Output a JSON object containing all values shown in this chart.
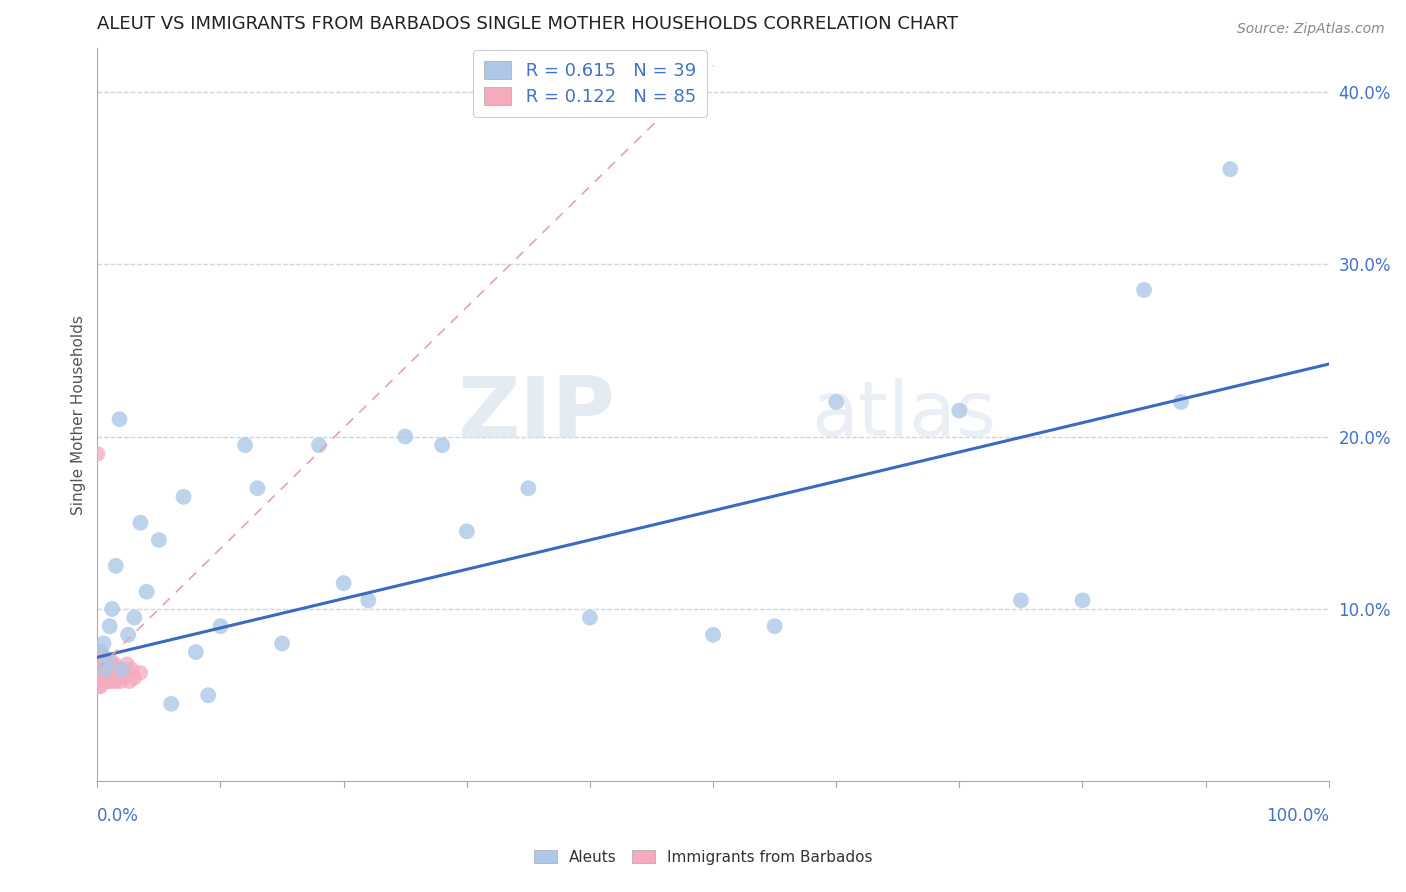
{
  "title": "ALEUT VS IMMIGRANTS FROM BARBADOS SINGLE MOTHER HOUSEHOLDS CORRELATION CHART",
  "source": "Source: ZipAtlas.com",
  "ylabel": "Single Mother Households",
  "r_aleut": 0.615,
  "n_aleut": 39,
  "r_barbados": 0.122,
  "n_barbados": 85,
  "aleut_color": "#adc8e8",
  "barbados_color": "#f5aabe",
  "trendline_color": "#3a6bbf",
  "dashed_line_color": "#e8a0b0",
  "watermark_zip": "ZIP",
  "watermark_atlas": "atlas",
  "aleut_x": [
    0.003,
    0.005,
    0.006,
    0.008,
    0.01,
    0.012,
    0.015,
    0.018,
    0.02,
    0.025,
    0.03,
    0.035,
    0.04,
    0.05,
    0.06,
    0.07,
    0.08,
    0.09,
    0.1,
    0.12,
    0.13,
    0.15,
    0.18,
    0.2,
    0.22,
    0.25,
    0.28,
    0.3,
    0.35,
    0.4,
    0.5,
    0.55,
    0.6,
    0.7,
    0.75,
    0.8,
    0.85,
    0.88,
    0.92
  ],
  "aleut_y": [
    0.075,
    0.08,
    0.065,
    0.07,
    0.09,
    0.1,
    0.125,
    0.21,
    0.065,
    0.085,
    0.095,
    0.15,
    0.11,
    0.14,
    0.045,
    0.165,
    0.075,
    0.05,
    0.09,
    0.195,
    0.17,
    0.08,
    0.195,
    0.115,
    0.105,
    0.2,
    0.195,
    0.145,
    0.17,
    0.095,
    0.085,
    0.09,
    0.22,
    0.215,
    0.105,
    0.105,
    0.285,
    0.22,
    0.355
  ],
  "barbados_x": [
    0.0003,
    0.0005,
    0.0006,
    0.0007,
    0.0008,
    0.001,
    0.001,
    0.001,
    0.0012,
    0.0013,
    0.0014,
    0.0015,
    0.0015,
    0.002,
    0.002,
    0.002,
    0.002,
    0.002,
    0.0022,
    0.0023,
    0.0025,
    0.0026,
    0.0027,
    0.003,
    0.003,
    0.003,
    0.003,
    0.003,
    0.003,
    0.0032,
    0.0033,
    0.0034,
    0.0035,
    0.0035,
    0.004,
    0.004,
    0.004,
    0.004,
    0.004,
    0.0042,
    0.0043,
    0.0044,
    0.0045,
    0.005,
    0.005,
    0.005,
    0.005,
    0.005,
    0.005,
    0.006,
    0.006,
    0.006,
    0.006,
    0.007,
    0.007,
    0.007,
    0.007,
    0.008,
    0.008,
    0.008,
    0.009,
    0.009,
    0.01,
    0.01,
    0.01,
    0.011,
    0.011,
    0.012,
    0.012,
    0.013,
    0.014,
    0.014,
    0.015,
    0.015,
    0.016,
    0.017,
    0.018,
    0.019,
    0.02,
    0.022,
    0.024,
    0.026,
    0.028,
    0.03,
    0.035
  ],
  "barbados_y": [
    0.19,
    0.075,
    0.065,
    0.06,
    0.07,
    0.065,
    0.072,
    0.058,
    0.063,
    0.068,
    0.055,
    0.062,
    0.07,
    0.06,
    0.065,
    0.058,
    0.072,
    0.068,
    0.062,
    0.055,
    0.068,
    0.06,
    0.072,
    0.058,
    0.063,
    0.065,
    0.07,
    0.06,
    0.072,
    0.058,
    0.065,
    0.068,
    0.06,
    0.072,
    0.058,
    0.063,
    0.065,
    0.07,
    0.06,
    0.072,
    0.058,
    0.065,
    0.068,
    0.06,
    0.063,
    0.065,
    0.058,
    0.072,
    0.068,
    0.06,
    0.065,
    0.058,
    0.072,
    0.06,
    0.063,
    0.065,
    0.07,
    0.06,
    0.065,
    0.058,
    0.063,
    0.068,
    0.06,
    0.065,
    0.058,
    0.063,
    0.07,
    0.058,
    0.065,
    0.06,
    0.063,
    0.068,
    0.058,
    0.065,
    0.06,
    0.063,
    0.065,
    0.058,
    0.06,
    0.063,
    0.068,
    0.058,
    0.065,
    0.06,
    0.063
  ],
  "ytick_vals": [
    0.1,
    0.2,
    0.3,
    0.4
  ],
  "ytick_labels": [
    "10.0%",
    "20.0%",
    "30.0%",
    "40.0%"
  ],
  "ymin": 0.0,
  "ymax": 0.425,
  "xmin": 0.0,
  "xmax": 1.0,
  "aleut_trend_x0": 0.0,
  "aleut_trend_y0": 0.072,
  "aleut_trend_x1": 1.0,
  "aleut_trend_y1": 0.242,
  "grid_color": "#d0d8e8",
  "background_color": "#ffffff",
  "title_fontsize": 13,
  "source_fontsize": 10,
  "axis_label_fontsize": 11
}
